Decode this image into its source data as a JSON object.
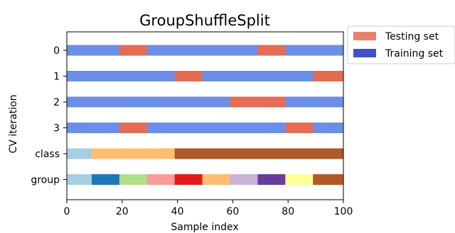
{
  "chart_data": {
    "type": "bar",
    "orientation": "horizontal",
    "title": "GroupShuffleSplit",
    "xlabel": "Sample index",
    "ylabel": "CV iteration",
    "xlim": [
      0,
      100
    ],
    "xticks": [
      0,
      20,
      40,
      60,
      80,
      100
    ],
    "grid": false,
    "legend_position": "outside-top-right",
    "legend": [
      {
        "label": "Testing set",
        "color": "#e8826a"
      },
      {
        "label": "Training set",
        "color": "#3f51c4"
      }
    ],
    "colors": {
      "train": "#6b8fe8",
      "test": "#e46c52"
    },
    "rows": [
      {
        "label": "0",
        "segments": [
          {
            "start": 0,
            "end": 19,
            "kind": "train"
          },
          {
            "start": 19,
            "end": 29,
            "kind": "test"
          },
          {
            "start": 29,
            "end": 69,
            "kind": "train"
          },
          {
            "start": 69,
            "end": 79,
            "kind": "test"
          },
          {
            "start": 79,
            "end": 100,
            "kind": "train"
          }
        ]
      },
      {
        "label": "1",
        "segments": [
          {
            "start": 0,
            "end": 39,
            "kind": "train"
          },
          {
            "start": 39,
            "end": 49,
            "kind": "test"
          },
          {
            "start": 49,
            "end": 89,
            "kind": "train"
          },
          {
            "start": 89,
            "end": 100,
            "kind": "test"
          }
        ]
      },
      {
        "label": "2",
        "segments": [
          {
            "start": 0,
            "end": 59,
            "kind": "train"
          },
          {
            "start": 59,
            "end": 79,
            "kind": "test"
          },
          {
            "start": 79,
            "end": 100,
            "kind": "train"
          }
        ]
      },
      {
        "label": "3",
        "segments": [
          {
            "start": 0,
            "end": 19,
            "kind": "train"
          },
          {
            "start": 19,
            "end": 29,
            "kind": "test"
          },
          {
            "start": 29,
            "end": 79,
            "kind": "train"
          },
          {
            "start": 79,
            "end": 89,
            "kind": "test"
          },
          {
            "start": 89,
            "end": 100,
            "kind": "train"
          }
        ]
      },
      {
        "label": "class",
        "segments": [
          {
            "start": 0,
            "end": 9,
            "color": "#a6cee3"
          },
          {
            "start": 9,
            "end": 39,
            "color": "#fdbf6f"
          },
          {
            "start": 39,
            "end": 100,
            "color": "#b15928"
          }
        ]
      },
      {
        "label": "group",
        "segments": [
          {
            "start": 0,
            "end": 9,
            "color": "#a6cee3"
          },
          {
            "start": 9,
            "end": 19,
            "color": "#1f78b4"
          },
          {
            "start": 19,
            "end": 29,
            "color": "#b2df8a"
          },
          {
            "start": 29,
            "end": 39,
            "color": "#fb9a99"
          },
          {
            "start": 39,
            "end": 49,
            "color": "#e31a1c"
          },
          {
            "start": 49,
            "end": 59,
            "color": "#fdbf6f"
          },
          {
            "start": 59,
            "end": 69,
            "color": "#cab2d6"
          },
          {
            "start": 69,
            "end": 79,
            "color": "#6a3d9a"
          },
          {
            "start": 79,
            "end": 89,
            "color": "#ffff99"
          },
          {
            "start": 89,
            "end": 100,
            "color": "#b15928"
          }
        ]
      }
    ]
  }
}
